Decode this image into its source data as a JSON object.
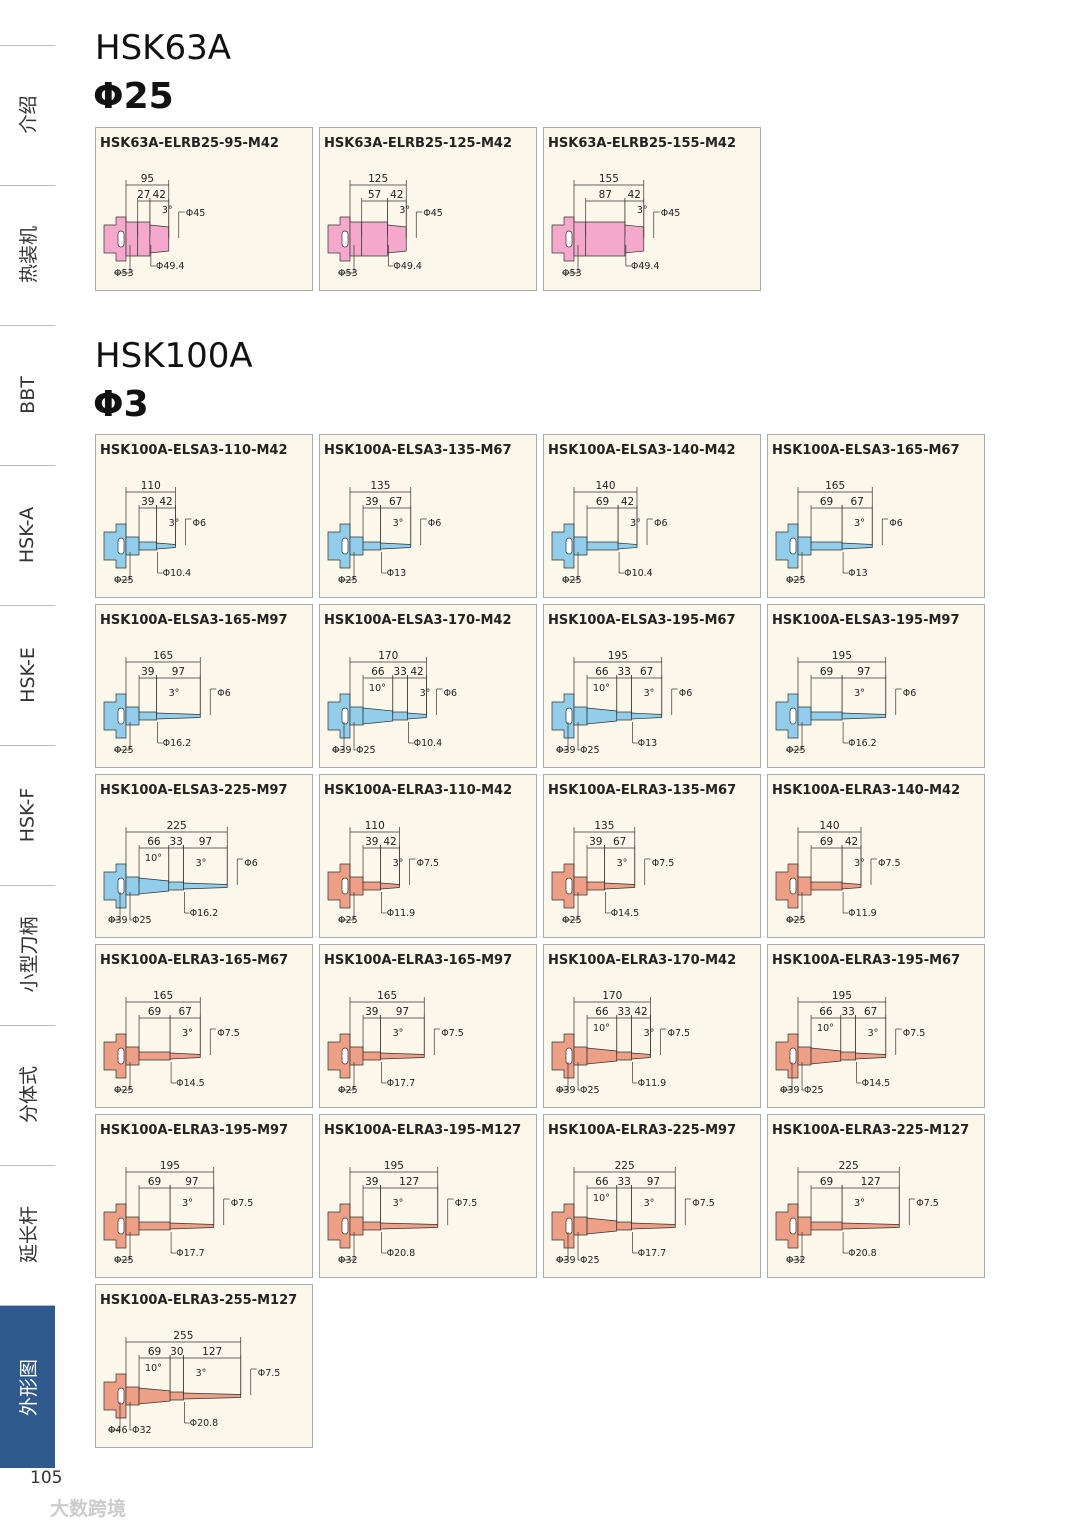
{
  "sidebar": {
    "tabs": [
      "介绍",
      "热装机",
      "BBT",
      "HSK-A",
      "HSK-E",
      "HSK-F",
      "小型刀柄",
      "分体式",
      "延长杆",
      "外形图"
    ]
  },
  "sections": [
    {
      "title": "HSK63A",
      "diameter": "Φ25",
      "cards": [
        {
          "name": "HSK63A-ELRB25-95-M42",
          "total": 95,
          "segments": [
            27,
            42
          ],
          "angle": "3°",
          "tip": "Φ45",
          "bottom": [
            "Φ53",
            "Φ49.4"
          ]
        },
        {
          "name": "HSK63A-ELRB25-125-M42",
          "total": 125,
          "segments": [
            57,
            42
          ],
          "angle": "3°",
          "tip": "Φ45",
          "bottom": [
            "Φ53",
            "Φ49.4"
          ]
        },
        {
          "name": "HSK63A-ELRB25-155-M42",
          "total": 155,
          "segments": [
            87,
            42
          ],
          "angle": "3°",
          "tip": "Φ45",
          "bottom": [
            "Φ53",
            "Φ49.4"
          ]
        }
      ]
    },
    {
      "title": "HSK100A",
      "diameter": "Φ3",
      "cards": [
        {
          "name": "HSK100A-ELSA3-110-M42",
          "total": 110,
          "segments": [
            39,
            42
          ],
          "angle": "3°",
          "tip": "Φ6",
          "bottom": [
            "Φ25",
            "Φ10.4"
          ]
        },
        {
          "name": "HSK100A-ELSA3-135-M67",
          "total": 135,
          "segments": [
            39,
            67
          ],
          "angle": "3°",
          "tip": "Φ6",
          "bottom": [
            "Φ25",
            "Φ13"
          ]
        },
        {
          "name": "HSK100A-ELSA3-140-M42",
          "total": 140,
          "segments": [
            69,
            42
          ],
          "angle": "3°",
          "tip": "Φ6",
          "bottom": [
            "Φ25",
            "Φ10.4"
          ]
        },
        {
          "name": "HSK100A-ELSA3-165-M67",
          "total": 165,
          "segments": [
            69,
            67
          ],
          "angle": "3°",
          "tip": "Φ6",
          "bottom": [
            "Φ25",
            "Φ13"
          ]
        },
        {
          "name": "HSK100A-ELSA3-165-M97",
          "total": 165,
          "segments": [
            39,
            97
          ],
          "angle": "3°",
          "tip": "Φ6",
          "bottom": [
            "Φ25",
            "Φ16.2"
          ]
        },
        {
          "name": "HSK100A-ELSA3-170-M42",
          "total": 170,
          "segments": [
            66,
            33,
            42
          ],
          "cone": "10°",
          "angle": "3°",
          "tip": "Φ6",
          "bottom": [
            "Φ39",
            "Φ25",
            "Φ10.4"
          ]
        },
        {
          "name": "HSK100A-ELSA3-195-M67",
          "total": 195,
          "segments": [
            66,
            33,
            67
          ],
          "cone": "10°",
          "angle": "3°",
          "tip": "Φ6",
          "bottom": [
            "Φ39",
            "Φ25",
            "Φ13"
          ]
        },
        {
          "name": "HSK100A-ELSA3-195-M97",
          "total": 195,
          "segments": [
            69,
            97
          ],
          "angle": "3°",
          "tip": "Φ6",
          "bottom": [
            "Φ25",
            "Φ16.2"
          ]
        },
        {
          "name": "HSK100A-ELSA3-225-M97",
          "total": 225,
          "segments": [
            66,
            33,
            97
          ],
          "cone": "10°",
          "angle": "3°",
          "tip": "Φ6",
          "bottom": [
            "Φ39",
            "Φ25",
            "Φ16.2"
          ]
        },
        {
          "name": "HSK100A-ELRA3-110-M42",
          "total": 110,
          "segments": [
            39,
            42
          ],
          "angle": "3°",
          "tip": "Φ7.5",
          "bottom": [
            "Φ25",
            "Φ11.9"
          ]
        },
        {
          "name": "HSK100A-ELRA3-135-M67",
          "total": 135,
          "segments": [
            39,
            67
          ],
          "angle": "3°",
          "tip": "Φ7.5",
          "bottom": [
            "Φ25",
            "Φ14.5"
          ]
        },
        {
          "name": "HSK100A-ELRA3-140-M42",
          "total": 140,
          "segments": [
            69,
            42
          ],
          "angle": "3°",
          "tip": "Φ7.5",
          "bottom": [
            "Φ25",
            "Φ11.9"
          ]
        },
        {
          "name": "HSK100A-ELRA3-165-M67",
          "total": 165,
          "segments": [
            69,
            67
          ],
          "angle": "3°",
          "tip": "Φ7.5",
          "bottom": [
            "Φ25",
            "Φ14.5"
          ]
        },
        {
          "name": "HSK100A-ELRA3-165-M97",
          "total": 165,
          "segments": [
            39,
            97
          ],
          "angle": "3°",
          "tip": "Φ7.5",
          "bottom": [
            "Φ25",
            "Φ17.7"
          ]
        },
        {
          "name": "HSK100A-ELRA3-170-M42",
          "total": 170,
          "segments": [
            66,
            33,
            42
          ],
          "cone": "10°",
          "angle": "3°",
          "tip": "Φ7.5",
          "bottom": [
            "Φ39",
            "Φ25",
            "Φ11.9"
          ]
        },
        {
          "name": "HSK100A-ELRA3-195-M67",
          "total": 195,
          "segments": [
            66,
            33,
            67
          ],
          "cone": "10°",
          "angle": "3°",
          "tip": "Φ7.5",
          "bottom": [
            "Φ39",
            "Φ25",
            "Φ14.5"
          ]
        },
        {
          "name": "HSK100A-ELRA3-195-M97",
          "total": 195,
          "segments": [
            69,
            97
          ],
          "angle": "3°",
          "tip": "Φ7.5",
          "bottom": [
            "Φ25",
            "Φ17.7"
          ]
        },
        {
          "name": "HSK100A-ELRA3-195-M127",
          "total": 195,
          "segments": [
            39,
            127
          ],
          "angle": "3°",
          "tip": "Φ7.5",
          "bottom": [
            "Φ32",
            "Φ20.8"
          ]
        },
        {
          "name": "HSK100A-ELRA3-225-M97",
          "total": 225,
          "segments": [
            66,
            33,
            97
          ],
          "cone": "10°",
          "angle": "3°",
          "tip": "Φ7.5",
          "bottom": [
            "Φ39",
            "Φ25",
            "Φ17.7"
          ]
        },
        {
          "name": "HSK100A-ELRA3-225-M127",
          "total": 225,
          "segments": [
            69,
            127
          ],
          "angle": "3°",
          "tip": "Φ7.5",
          "bottom": [
            "Φ32",
            "Φ20.8"
          ]
        },
        {
          "name": "HSK100A-ELRA3-255-M127",
          "total": 255,
          "segments": [
            69,
            30,
            127
          ],
          "cone": "10°",
          "angle": "3°",
          "tip": "Φ7.5",
          "bottom": [
            "Φ46",
            "Φ32",
            "Φ20.8"
          ]
        }
      ]
    }
  ],
  "footer": {
    "page_number": "105",
    "watermark": "大数跨境"
  }
}
